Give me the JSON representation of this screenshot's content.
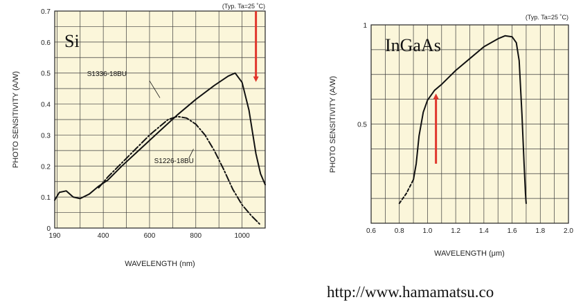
{
  "url_text": "http://www.hamamatsu.co",
  "colors": {
    "plot_bg": "#fbf6da",
    "grid": "#3a3a3a",
    "curve": "#111111",
    "arrow": "#e0362c"
  },
  "chart_data": [
    {
      "type": "line",
      "material_label": "Si",
      "note": "(Typ. Ta=25 ˚C)",
      "xlabel": "WAVELENGTH (nm)",
      "ylabel": "PHOTO SENSITIVITY (A/W)",
      "xlim": [
        190,
        1100
      ],
      "ylim": [
        0,
        0.7
      ],
      "x_ticks": [
        190,
        400,
        600,
        800,
        1000
      ],
      "y_ticks": [
        0,
        0.1,
        0.2,
        0.3,
        0.4,
        0.5,
        0.6,
        0.7
      ],
      "x_tick_labels": [
        "190",
        "400",
        "600",
        "800",
        "1000"
      ],
      "y_tick_labels": [
        "0",
        "0.1",
        "0.2",
        "0.3",
        "0.4",
        "0.5",
        "0.6",
        "0.7"
      ],
      "grid": true,
      "series": [
        {
          "name": "S1336-18BU",
          "style": "solid",
          "label_at": [
            330,
            0.49
          ],
          "x": [
            190,
            210,
            240,
            270,
            300,
            340,
            380,
            420,
            480,
            560,
            640,
            720,
            800,
            880,
            940,
            970,
            1000,
            1030,
            1060,
            1080,
            1100
          ],
          "values": [
            0.09,
            0.115,
            0.12,
            0.1,
            0.095,
            0.11,
            0.135,
            0.155,
            0.2,
            0.255,
            0.31,
            0.365,
            0.415,
            0.46,
            0.49,
            0.5,
            0.47,
            0.38,
            0.24,
            0.175,
            0.14
          ]
        },
        {
          "name": "S1226-18BU",
          "style": "dashdot",
          "label_at": [
            620,
            0.21
          ],
          "x": [
            380,
            420,
            480,
            540,
            600,
            640,
            680,
            720,
            760,
            800,
            840,
            880,
            920,
            960,
            1000,
            1040,
            1080
          ],
          "values": [
            0.13,
            0.165,
            0.21,
            0.255,
            0.3,
            0.325,
            0.35,
            0.36,
            0.355,
            0.335,
            0.3,
            0.25,
            0.19,
            0.125,
            0.075,
            0.04,
            0.01
          ]
        }
      ],
      "arrow": {
        "x": 1060,
        "from": 0.7,
        "to": 0.48
      }
    },
    {
      "type": "line",
      "material_label": "InGaAs",
      "note": "(Typ. Ta=25 ˚C)",
      "xlabel": "WAVELENGTH (μm)",
      "ylabel": "PHOTO SENSITIVITY (A/W)",
      "xlim": [
        0.6,
        2.0
      ],
      "ylim": [
        0,
        1
      ],
      "x_ticks": [
        0.6,
        0.8,
        1.0,
        1.2,
        1.4,
        1.6,
        1.8,
        2.0
      ],
      "y_ticks": [
        0.5,
        1
      ],
      "x_tick_labels": [
        "0.6",
        "0.8",
        "1.0",
        "1.2",
        "1.4",
        "1.6",
        "1.8",
        "2.0"
      ],
      "y_tick_labels": [
        "0.5",
        "1"
      ],
      "y_grid_step": 0.125,
      "x_grid_step": 0.1,
      "grid": true,
      "series": [
        {
          "name": "",
          "style": "solid",
          "x": [
            0.9,
            0.92,
            0.94,
            0.97,
            1.0,
            1.05,
            1.1,
            1.2,
            1.3,
            1.4,
            1.5,
            1.55,
            1.6,
            1.63,
            1.65,
            1.67,
            1.685,
            1.695,
            1.7
          ],
          "values": [
            0.22,
            0.3,
            0.44,
            0.56,
            0.62,
            0.67,
            0.7,
            0.77,
            0.83,
            0.89,
            0.93,
            0.945,
            0.94,
            0.91,
            0.82,
            0.55,
            0.3,
            0.15,
            0.1
          ]
        },
        {
          "name": "",
          "style": "dashed",
          "x": [
            0.8,
            0.85,
            0.9
          ],
          "values": [
            0.1,
            0.15,
            0.22
          ]
        }
      ],
      "arrow": {
        "x": 1.06,
        "from": 0.3,
        "to": 0.64
      }
    }
  ]
}
